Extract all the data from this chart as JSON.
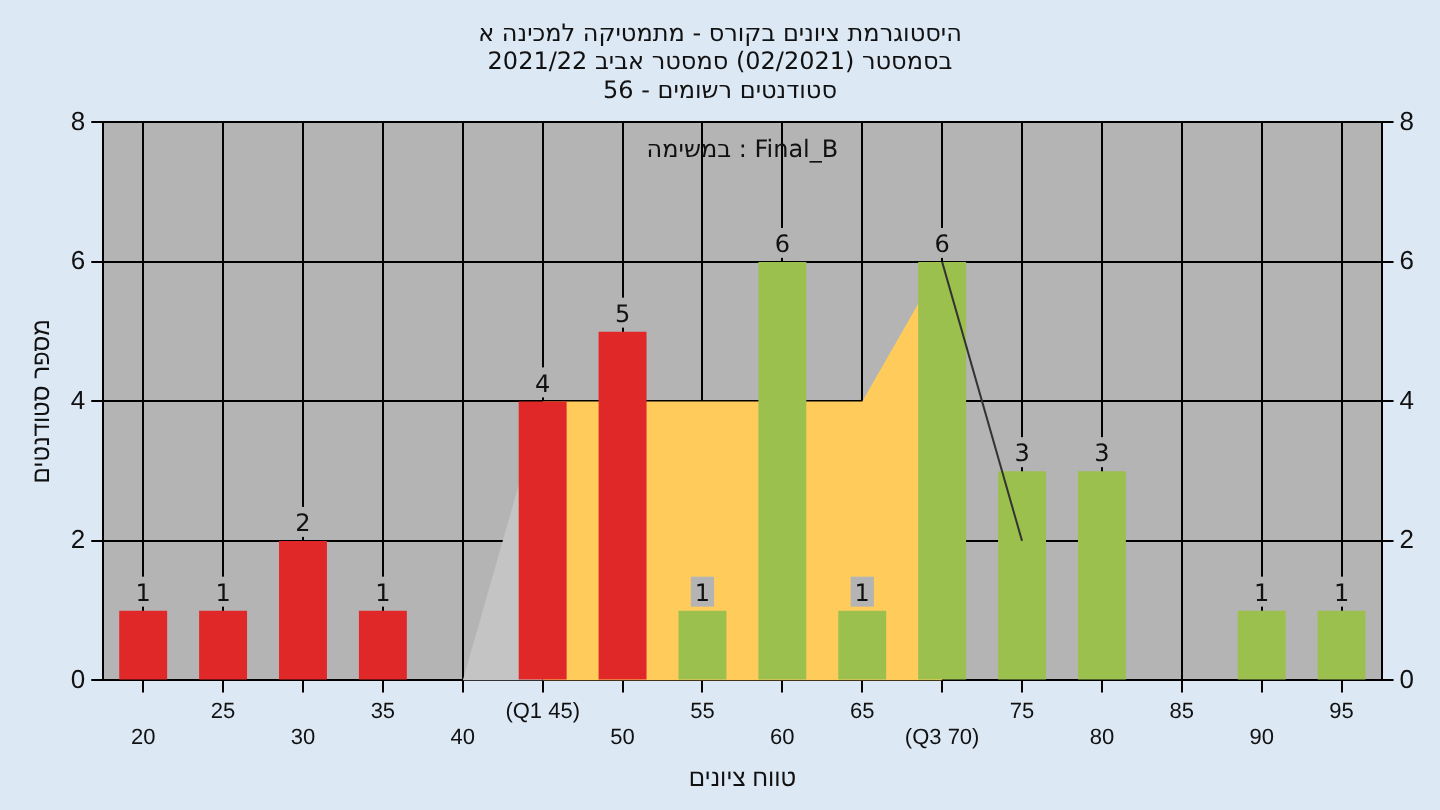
{
  "chart_data": {
    "type": "bar",
    "title": [
      "היסטוגרמת ציונים בקורס - מתמטיקה למכינה א",
      "בסמסטר (02/2021) סמסטר אביב 2021/22",
      "סטודנטים רשומים - 56"
    ],
    "xlabel": "טווח ציונים",
    "ylabel": "מספר סטודנטים",
    "annotations": [
      "במשימה : Final_B"
    ],
    "categories": [
      "20",
      "25",
      "30",
      "35",
      "40",
      "(Q1 45)",
      "50",
      "55",
      "60",
      "65",
      "(Q3 70)",
      "75",
      "80",
      "85",
      "90",
      "95"
    ],
    "series": [
      {
        "values": [
          1,
          1,
          2,
          1,
          0,
          4,
          5,
          1,
          6,
          1,
          6,
          3,
          3,
          0,
          1,
          1
        ],
        "colors": [
          "#e02828",
          "#e02828",
          "#e02828",
          "#e02828",
          "#e02828",
          "#e02828",
          "#e02828",
          "#9cc04e",
          "#9cc04e",
          "#9cc04e",
          "#9cc04e",
          "#9cc04e",
          "#9cc04e",
          "#9cc04e",
          "#9cc04e",
          "#9cc04e"
        ],
        "value_labels": [
          "1",
          "1",
          "2",
          "1",
          null,
          "4",
          "5",
          "1",
          "6",
          "1",
          "6",
          "3",
          "3",
          null,
          "1",
          "1"
        ]
      },
      {
        "type": "area",
        "color": "#c4c4c4",
        "values": [
          null,
          null,
          null,
          null,
          0,
          4,
          null,
          null,
          null,
          null,
          null,
          null,
          null,
          null,
          null,
          null
        ]
      },
      {
        "type": "area",
        "color": "#ffcc5c",
        "values": [
          null,
          null,
          null,
          null,
          null,
          4,
          null,
          4,
          null,
          4,
          6,
          null,
          null,
          null,
          null,
          null
        ]
      },
      {
        "type": "line",
        "color": "#333333",
        "values": [
          null,
          null,
          null,
          null,
          null,
          null,
          null,
          null,
          null,
          null,
          6,
          2,
          null,
          null,
          null,
          null
        ]
      }
    ],
    "ylim": [
      0,
      8
    ],
    "yticks": [
      0,
      2,
      4,
      6,
      8
    ],
    "y2lim": [
      0,
      8
    ],
    "y2ticks": [
      0,
      2,
      4,
      6,
      8
    ],
    "grid": true,
    "legend": false
  }
}
